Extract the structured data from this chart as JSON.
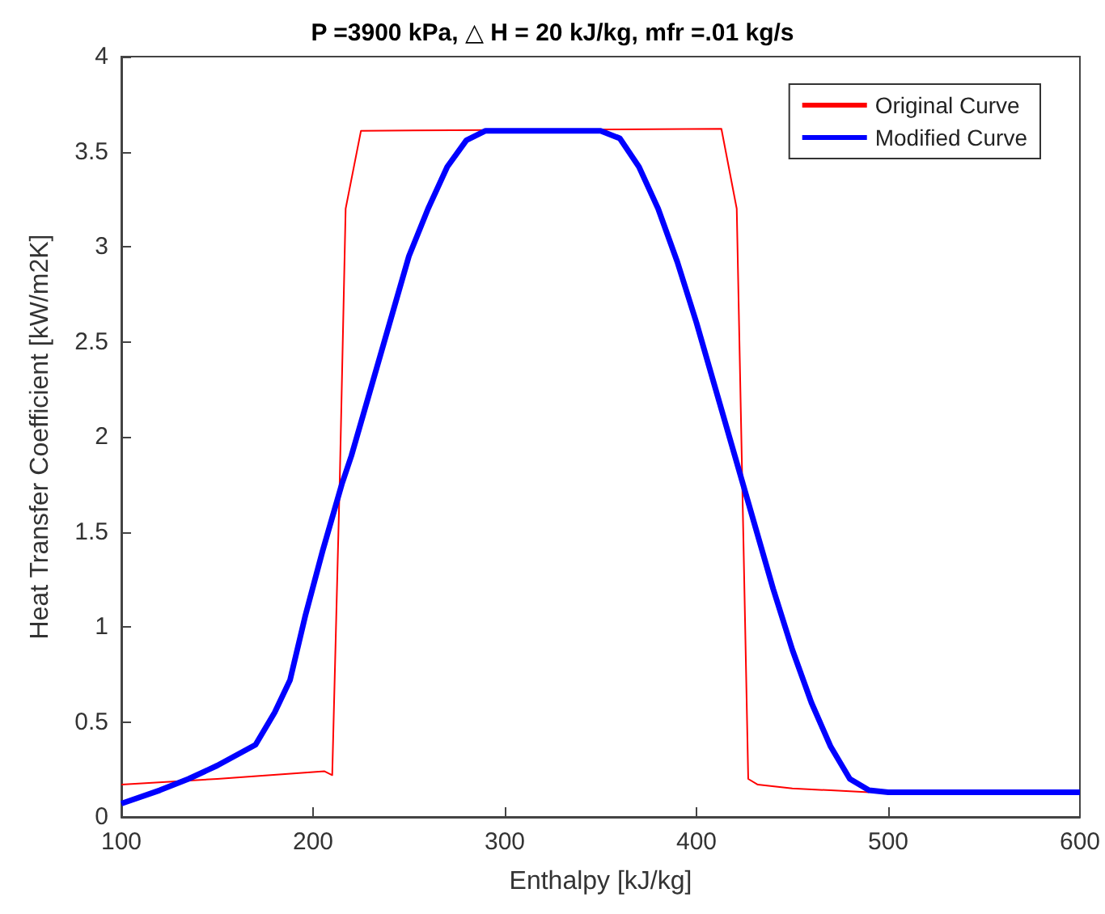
{
  "chart_data": {
    "type": "line",
    "title": "P =3900 kPa, △ H = 20 kJ/kg, mfr =.01 kg/s",
    "xlabel": "Enthalpy [kJ/kg]",
    "ylabel": "Heat Transfer Coefficient [kW/m2K]",
    "xlim": [
      100,
      600
    ],
    "xticks": [
      100,
      200,
      300,
      400,
      500,
      600
    ],
    "ylim": [
      0,
      4
    ],
    "yticks": [
      0,
      0.5,
      1,
      1.5,
      2,
      2.5,
      3,
      3.5,
      4
    ],
    "grid": false,
    "legend": "top right",
    "marker": "none",
    "series": [
      {
        "name": "Original Curve",
        "color": "#ff0000",
        "x": [
          100,
          150,
          206,
          210,
          214,
          217,
          225,
          413,
          421,
          427,
          432,
          450,
          470,
          490
        ],
        "values": [
          0.17,
          0.2,
          0.24,
          0.22,
          1.8,
          3.2,
          3.61,
          3.62,
          3.2,
          0.2,
          0.17,
          0.15,
          0.14,
          0.13
        ]
      },
      {
        "name": "Modified Curve",
        "color": "#0000ff",
        "x": [
          100,
          120,
          135,
          150,
          170,
          180,
          188,
          196,
          205,
          215,
          220,
          230,
          240,
          250,
          260,
          270,
          280,
          290,
          300,
          350,
          360,
          370,
          380,
          390,
          400,
          410,
          420,
          430,
          440,
          450,
          460,
          470,
          480,
          490,
          500,
          550,
          600
        ],
        "values": [
          0.07,
          0.14,
          0.2,
          0.27,
          0.38,
          0.55,
          0.72,
          1.06,
          1.4,
          1.75,
          1.9,
          2.25,
          2.6,
          2.95,
          3.2,
          3.42,
          3.56,
          3.61,
          3.61,
          3.61,
          3.57,
          3.42,
          3.2,
          2.92,
          2.6,
          2.25,
          1.9,
          1.55,
          1.2,
          0.88,
          0.6,
          0.37,
          0.2,
          0.14,
          0.13,
          0.13,
          0.13
        ]
      }
    ]
  }
}
